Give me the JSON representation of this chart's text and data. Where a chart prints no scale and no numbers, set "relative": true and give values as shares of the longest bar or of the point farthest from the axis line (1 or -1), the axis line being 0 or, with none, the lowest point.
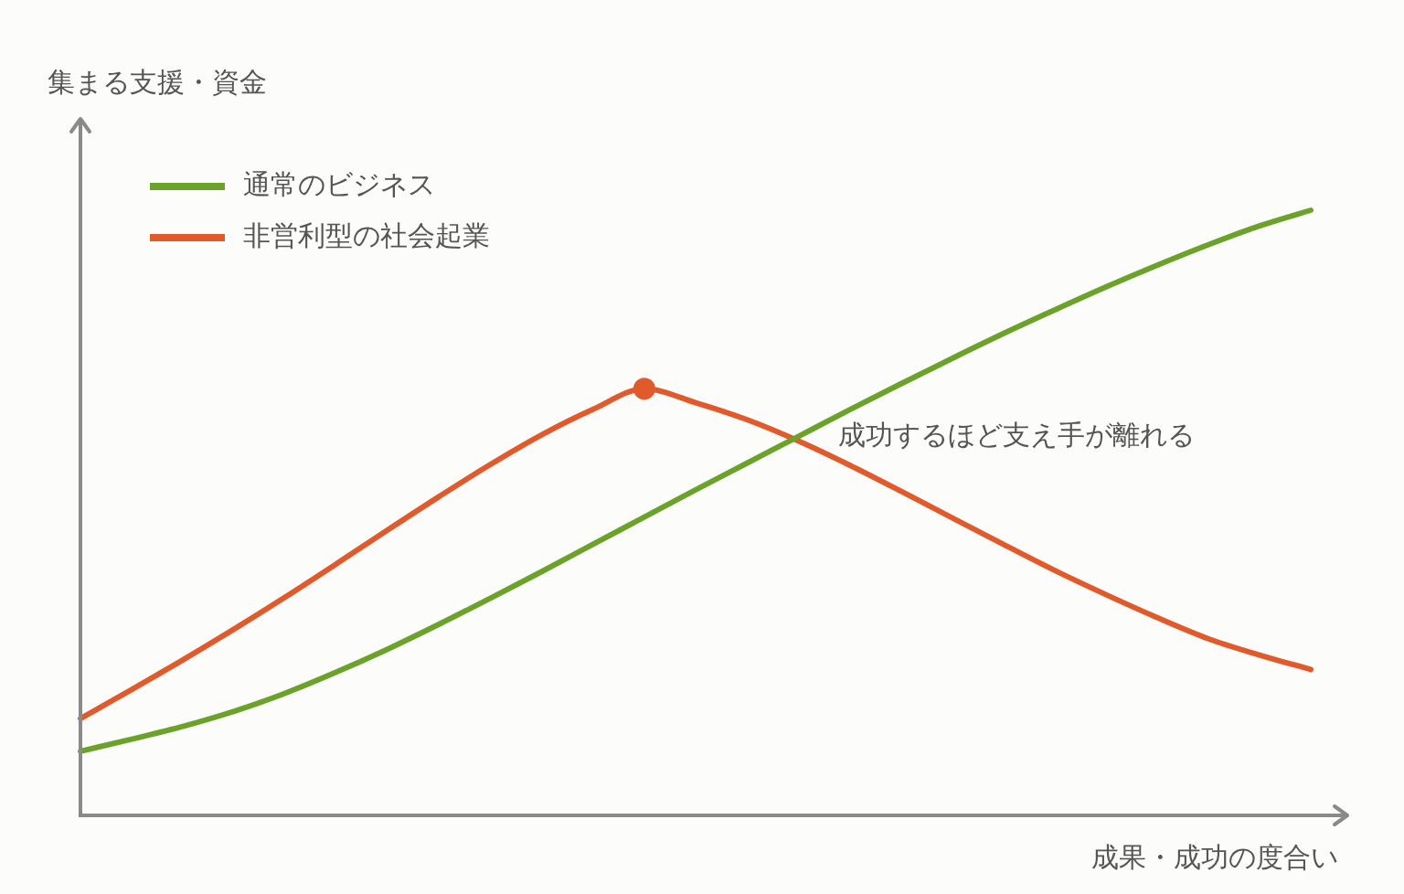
{
  "chart_data": {
    "type": "line",
    "ylabel": "集まる支援・資金",
    "xlabel": "成果・成功の度合い",
    "categories": [
      null,
      null,
      null,
      null,
      null,
      null,
      null,
      null,
      null,
      null,
      null,
      null,
      null,
      null,
      null,
      null,
      null,
      null,
      null,
      null,
      null,
      null,
      null,
      null,
      null
    ],
    "relative": true,
    "tick_labels": false,
    "grid": false,
    "legend": "top left",
    "marker": "none",
    "series": [
      {
        "name": "通常のビジネス",
        "color": "#6ba32a",
        "values": [
          0.106,
          0.126,
          0.147,
          0.172,
          0.202,
          0.237,
          0.275,
          0.316,
          0.359,
          0.403,
          0.448,
          0.493,
          0.538,
          0.582,
          0.626,
          0.67,
          0.713,
          0.755,
          0.796,
          0.835,
          0.873,
          0.909,
          0.943,
          0.974,
          1
        ]
      },
      {
        "name": "非営利型の社会起業",
        "color": "#e05a2b",
        "values": [
          0.16,
          0.208,
          0.257,
          0.308,
          0.361,
          0.416,
          0.472,
          0.527,
          0.58,
          0.629,
          0.671,
          0.705,
          0.682,
          0.654,
          0.619,
          0.579,
          0.536,
          0.492,
          0.448,
          0.405,
          0.365,
          0.327,
          0.292,
          0.265,
          0.241
        ]
      },
      {
        "color": "#e05a2b",
        "marker": "circle",
        "values": [
          null,
          null,
          null,
          null,
          null,
          null,
          null,
          null,
          null,
          null,
          null,
          0.705,
          null,
          null,
          null,
          null,
          null,
          null,
          null,
          null,
          null,
          null,
          null,
          null,
          null
        ]
      }
    ],
    "annotations": [
      "成功するほど支え手が離れる"
    ]
  }
}
